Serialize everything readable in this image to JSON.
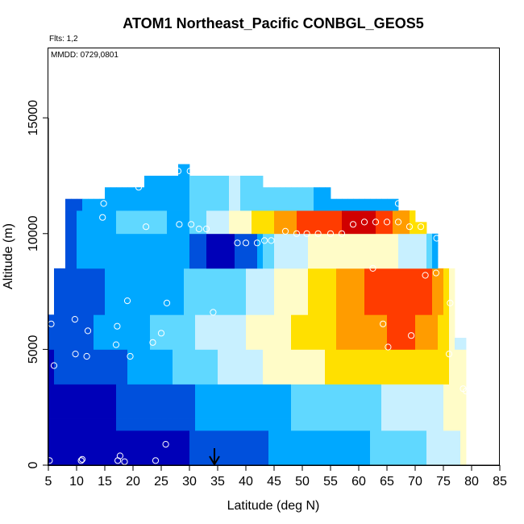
{
  "chart_data": {
    "type": "heatmap",
    "title": "ATOM1 Northeast_Pacific CONBGL_GEOS5",
    "subtitle": "Flts: 1,2",
    "annotation": "MMDD: 0729,0801",
    "xlabel": "Latitude (deg N)",
    "ylabel": "Altitude (m)",
    "xlim": [
      5,
      85
    ],
    "ylim": [
      0,
      18000
    ],
    "x_ticks": [
      "5",
      "10",
      "15",
      "20",
      "25",
      "30",
      "35",
      "40",
      "45",
      "50",
      "55",
      "60",
      "65",
      "70",
      "75",
      "80",
      "85"
    ],
    "y_ticks": [
      "0",
      "5000",
      "10000",
      "15000"
    ],
    "x_tick_values": [
      5,
      10,
      15,
      20,
      25,
      30,
      35,
      40,
      45,
      50,
      55,
      60,
      65,
      70,
      75,
      80,
      85
    ],
    "y_tick_values": [
      0,
      5000,
      10000,
      15000
    ],
    "marker": {
      "type": "arrow",
      "x": 35
    },
    "grid": false,
    "colorscale": [
      "#0000b8",
      "#0050dc",
      "#00a8ff",
      "#60d8ff",
      "#c8f0ff",
      "#fffcc8",
      "#ffe000",
      "#ff9c00",
      "#ff3c00",
      "#d00000",
      "#8000c0"
    ],
    "heatmap_grid": {
      "x_start": 5,
      "x_end": 79,
      "x_step": 1,
      "y_start": 0,
      "y_end": 13000,
      "y_step": 500,
      "column_top": [
        {
          "from": 5,
          "to": 6,
          "top": 6500
        },
        {
          "from": 6,
          "to": 8,
          "top": 8500
        },
        {
          "from": 8,
          "to": 15,
          "top": 11500
        },
        {
          "from": 15,
          "to": 22,
          "top": 12000
        },
        {
          "from": 22,
          "to": 28,
          "top": 12500
        },
        {
          "from": 28,
          "to": 30,
          "top": 13000
        },
        {
          "from": 30,
          "to": 43,
          "top": 12500
        },
        {
          "from": 43,
          "to": 55,
          "top": 12000
        },
        {
          "from": 55,
          "to": 67,
          "top": 11500
        },
        {
          "from": 67,
          "to": 70,
          "top": 11000
        },
        {
          "from": 70,
          "to": 72,
          "top": 10500
        },
        {
          "from": 72,
          "to": 74,
          "top": 10000
        },
        {
          "from": 74,
          "to": 77,
          "top": 8500
        },
        {
          "from": 77,
          "to": 79,
          "top": 5500
        }
      ],
      "bands": [
        {
          "ymin": 0,
          "ymax": 1500,
          "pts": [
            [
              5,
              0
            ],
            [
              30,
              0.5
            ],
            [
              42,
              1.4
            ],
            [
              52,
              2.0
            ],
            [
              62,
              2.5
            ],
            [
              70,
              3.2
            ],
            [
              79,
              4.6
            ]
          ]
        },
        {
          "ymin": 1500,
          "ymax": 3500,
          "pts": [
            [
              5,
              0
            ],
            [
              20,
              0.6
            ],
            [
              32,
              1.6
            ],
            [
              42,
              2.2
            ],
            [
              55,
              2.9
            ],
            [
              65,
              3.6
            ],
            [
              72,
              4.2
            ],
            [
              79,
              4.8
            ]
          ]
        },
        {
          "ymin": 3500,
          "ymax": 5000,
          "pts": [
            [
              5,
              0.4
            ],
            [
              20,
              1.6
            ],
            [
              28,
              2.6
            ],
            [
              40,
              4.2
            ],
            [
              50,
              5.2
            ],
            [
              60,
              5.9
            ],
            [
              70,
              6.3
            ],
            [
              76,
              5.6
            ],
            [
              79,
              4.8
            ]
          ]
        },
        {
          "ymin": 5000,
          "ymax": 6500,
          "pts": [
            [
              5,
              1
            ],
            [
              18,
              1.8
            ],
            [
              26,
              3
            ],
            [
              32,
              3.6
            ],
            [
              40,
              4.5
            ],
            [
              50,
              5.8
            ],
            [
              60,
              6.9
            ],
            [
              68,
              7.8
            ],
            [
              73,
              7.0
            ],
            [
              78,
              4.2
            ]
          ]
        },
        {
          "ymin": 6500,
          "ymax": 8500,
          "pts": [
            [
              5,
              1.2
            ],
            [
              15,
              1.5
            ],
            [
              25,
              1.8
            ],
            [
              32,
              3.0
            ],
            [
              40,
              3.4
            ],
            [
              48,
              5.0
            ],
            [
              55,
              6.2
            ],
            [
              62,
              7.8
            ],
            [
              70,
              8.4
            ],
            [
              74,
              7.2
            ],
            [
              77,
              5.0
            ]
          ]
        },
        {
          "ymin": 8500,
          "ymax": 10000,
          "pts": [
            [
              5,
              1.1
            ],
            [
              15,
              1.9
            ],
            [
              20,
              2.5
            ],
            [
              28,
              2.4
            ],
            [
              34,
              0.2
            ],
            [
              40,
              0.6
            ],
            [
              46,
              4.1
            ],
            [
              55,
              4.8
            ],
            [
              65,
              4.9
            ],
            [
              72,
              3.5
            ],
            [
              75,
              1.0
            ],
            [
              77,
              10
            ]
          ]
        },
        {
          "ymin": 10000,
          "ymax": 11000,
          "pts": [
            [
              8,
              1.2
            ],
            [
              16,
              2.2
            ],
            [
              22,
              3.5
            ],
            [
              28,
              2.0
            ],
            [
              34,
              3.8
            ],
            [
              40,
              5.2
            ],
            [
              48,
              7.4
            ],
            [
              55,
              8.4
            ],
            [
              62,
              8.8
            ],
            [
              68,
              6.8
            ],
            [
              74,
              5.0
            ]
          ]
        },
        {
          "ymin": 11000,
          "ymax": 13000,
          "pts": [
            [
              8,
              1.3
            ],
            [
              18,
              2.0
            ],
            [
              25,
              2.3
            ],
            [
              32,
              2.6
            ],
            [
              38,
              3.6
            ],
            [
              45,
              3.0
            ],
            [
              55,
              2.3
            ],
            [
              67,
              2.0
            ]
          ]
        }
      ]
    },
    "observations": [
      [
        5.2,
        200
      ],
      [
        10.8,
        200
      ],
      [
        11.0,
        250
      ],
      [
        17.3,
        200
      ],
      [
        17.7,
        400
      ],
      [
        18.5,
        150
      ],
      [
        24.0,
        200
      ],
      [
        25.8,
        900
      ],
      [
        6.0,
        4300
      ],
      [
        9.8,
        4800
      ],
      [
        11.8,
        4700
      ],
      [
        19.5,
        4700
      ],
      [
        23.5,
        5300
      ],
      [
        17.0,
        5200
      ],
      [
        25.0,
        5700
      ],
      [
        5.5,
        6100
      ],
      [
        9.7,
        6300
      ],
      [
        12.0,
        5800
      ],
      [
        17.2,
        6000
      ],
      [
        19.0,
        7100
      ],
      [
        26.0,
        7000
      ],
      [
        34.2,
        6600
      ],
      [
        7.0,
        10500
      ],
      [
        7.3,
        11200
      ],
      [
        14.6,
        10700
      ],
      [
        14.8,
        11300
      ],
      [
        21.0,
        12000
      ],
      [
        22.3,
        10300
      ],
      [
        28.0,
        12700
      ],
      [
        30.1,
        12700
      ],
      [
        28.2,
        10400
      ],
      [
        30.3,
        10400
      ],
      [
        31.7,
        10200
      ],
      [
        33.0,
        10200
      ],
      [
        38.5,
        9600
      ],
      [
        40.0,
        9600
      ],
      [
        42.0,
        9600
      ],
      [
        43.3,
        9700
      ],
      [
        44.5,
        9700
      ],
      [
        47.0,
        10100
      ],
      [
        49.0,
        10000
      ],
      [
        50.8,
        10000
      ],
      [
        52.8,
        10000
      ],
      [
        55.0,
        10000
      ],
      [
        57.0,
        10000
      ],
      [
        59.0,
        10400
      ],
      [
        61.0,
        10500
      ],
      [
        63.0,
        10500
      ],
      [
        65.0,
        10500
      ],
      [
        67.0,
        10500
      ],
      [
        69.0,
        10300
      ],
      [
        71.0,
        10300
      ],
      [
        67.0,
        11300
      ],
      [
        73.8,
        9800
      ],
      [
        76.0,
        9800
      ],
      [
        76.2,
        9200
      ],
      [
        62.5,
        8500
      ],
      [
        64.3,
        6100
      ],
      [
        65.2,
        5100
      ],
      [
        69.3,
        5600
      ],
      [
        71.8,
        8200
      ],
      [
        73.7,
        8300
      ],
      [
        76.2,
        7000
      ],
      [
        76.0,
        4800
      ],
      [
        78.5,
        3300
      ],
      [
        79.0,
        3200
      ]
    ]
  }
}
